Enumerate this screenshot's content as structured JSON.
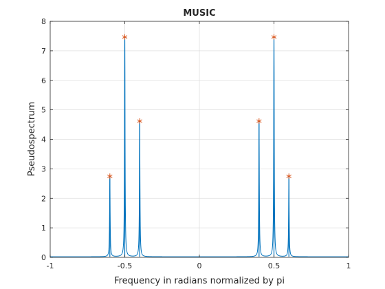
{
  "chart_data": {
    "type": "line",
    "title": "MUSIC",
    "xlabel": "Frequency in radians normalized by pi",
    "ylabel": "Pseudospectrum",
    "xlim": [
      -1,
      1
    ],
    "ylim": [
      0,
      8
    ],
    "xticks": [
      -1,
      -0.5,
      0,
      0.5,
      1
    ],
    "xtick_labels": [
      "-1",
      "-0.5",
      "0",
      "0.5",
      "1"
    ],
    "yticks": [
      0,
      1,
      2,
      3,
      4,
      5,
      6,
      7,
      8
    ],
    "ytick_labels": [
      "0",
      "1",
      "2",
      "3",
      "4",
      "5",
      "6",
      "7",
      "8"
    ],
    "grid": true,
    "series": [
      {
        "color": "#0072bd",
        "baseline": 0.02,
        "peaks": [
          {
            "x": -0.6,
            "y": 2.75
          },
          {
            "x": -0.5,
            "y": 7.47
          },
          {
            "x": -0.4,
            "y": 4.62
          },
          {
            "x": 0.4,
            "y": 4.62
          },
          {
            "x": 0.5,
            "y": 7.47
          },
          {
            "x": 0.6,
            "y": 2.75
          }
        ]
      }
    ],
    "markers": {
      "symbol": "*",
      "color": "#d95319",
      "points": [
        {
          "x": -0.6,
          "y": 2.75
        },
        {
          "x": -0.5,
          "y": 7.47
        },
        {
          "x": -0.4,
          "y": 4.62
        },
        {
          "x": 0.4,
          "y": 4.62
        },
        {
          "x": 0.5,
          "y": 7.47
        },
        {
          "x": 0.6,
          "y": 2.75
        }
      ]
    }
  }
}
